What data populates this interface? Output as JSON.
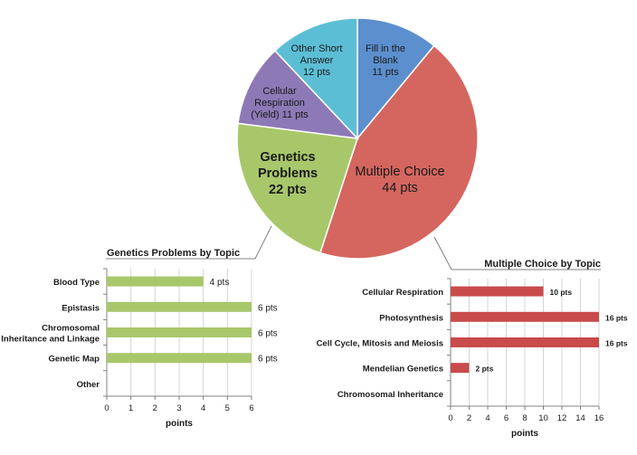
{
  "chart_data": [
    {
      "type": "pie",
      "title": "",
      "slices": [
        {
          "label_lines": [
            "Fill in the",
            "Blank",
            "11 pts"
          ],
          "value": 11,
          "color": "#5b8fcd"
        },
        {
          "label_lines": [
            "Multiple Choice",
            "44 pts"
          ],
          "value": 44,
          "color": "#d4665f"
        },
        {
          "label_lines": [
            "Genetics",
            "Problems",
            "22 pts"
          ],
          "value": 22,
          "color": "#a8c76a"
        },
        {
          "label_lines": [
            "Cellular",
            "Respiration",
            "(Yield) 11 pts"
          ],
          "value": 11,
          "color": "#8d79b6"
        },
        {
          "label_lines": [
            "Other Short",
            "Answer",
            "12 pts"
          ],
          "value": 12,
          "color": "#5cbed5"
        }
      ]
    },
    {
      "type": "bar",
      "orientation": "horizontal",
      "title": "Genetics Problems by Topic",
      "xlabel": "points",
      "ylabel": "",
      "xlim": [
        0,
        6
      ],
      "xticks": [
        "0",
        "1",
        "2",
        "3",
        "4",
        "5",
        "6"
      ],
      "color": "#a8c76a",
      "categories": [
        {
          "lines": [
            "Blood Type"
          ]
        },
        {
          "lines": [
            "Epistasis"
          ]
        },
        {
          "lines": [
            "Chromosomal",
            "Inheritance and Linkage"
          ]
        },
        {
          "lines": [
            "Genetic Map"
          ]
        },
        {
          "lines": [
            "Other"
          ]
        }
      ],
      "values": [
        4,
        6,
        6,
        6,
        null
      ],
      "data_labels": [
        "4 pts",
        "6 pts",
        "6 pts",
        "6 pts",
        ""
      ]
    },
    {
      "type": "bar",
      "orientation": "horizontal",
      "title": "Multiple Choice by Topic",
      "xlabel": "points",
      "ylabel": "",
      "xlim": [
        0,
        16
      ],
      "xticks": [
        "0",
        "2",
        "4",
        "6",
        "8",
        "10",
        "12",
        "14",
        "16"
      ],
      "color": "#c94b4b",
      "categories": [
        {
          "lines": [
            "Cellular Respiration"
          ]
        },
        {
          "lines": [
            "Photosynthesis"
          ]
        },
        {
          "lines": [
            "Cell Cycle, Mitosis and Meiosis"
          ]
        },
        {
          "lines": [
            "Mendelian Genetics"
          ]
        },
        {
          "lines": [
            "Chromosomal Inheritance"
          ]
        }
      ],
      "values": [
        10,
        16,
        16,
        2,
        null
      ],
      "data_labels": [
        "10 pts",
        "16 pts",
        "16 pts",
        "2 pts",
        ""
      ]
    }
  ]
}
